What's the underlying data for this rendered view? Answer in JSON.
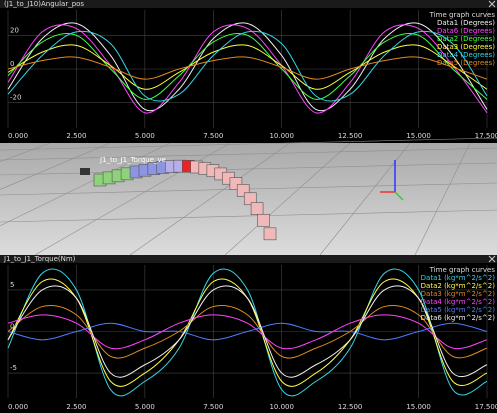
{
  "chart_data": [
    {
      "type": "line",
      "title": "(J1_to_J10)Angular_pos",
      "legend_title": "Time graph curves",
      "x": [
        0,
        1.25,
        2.5,
        3.75,
        5,
        6.25,
        7.5,
        8.75,
        10,
        11.25,
        12.5,
        13.75,
        15,
        16.25,
        17.5
      ],
      "xlim": [
        0,
        17.5
      ],
      "xticks": [
        {
          "value": 0,
          "label": "0.000"
        },
        {
          "value": 2.5,
          "label": "2.500"
        },
        {
          "value": 5,
          "label": "5.000"
        },
        {
          "value": 7.5,
          "label": "7.500"
        },
        {
          "value": 10,
          "label": "10.000"
        },
        {
          "value": 12.5,
          "label": "12.500"
        },
        {
          "value": 15,
          "label": "15.000"
        },
        {
          "value": 17.5,
          "label": "17.500"
        }
      ],
      "ylim": [
        -35,
        35
      ],
      "yticks": [
        -20,
        0,
        20
      ],
      "grid": true,
      "series": [
        {
          "name": "Data1 (Degrees)",
          "color": "#f0f0f0",
          "values": [
            -12,
            18,
            27,
            8,
            -24,
            -12,
            18,
            27,
            8,
            -24,
            -12,
            18,
            27,
            8,
            -24
          ]
        },
        {
          "name": "Data6 (Degrees)",
          "color": "#ff44ff",
          "values": [
            -8,
            22,
            24,
            2,
            -26,
            -8,
            22,
            24,
            2,
            -26,
            -8,
            22,
            24,
            2,
            -26
          ]
        },
        {
          "name": "Data2 (Degrees)",
          "color": "#44ff44",
          "values": [
            -4,
            16,
            20,
            0,
            -18,
            -4,
            16,
            20,
            0,
            -18,
            -4,
            16,
            20,
            0,
            -18
          ]
        },
        {
          "name": "Data3 (Degrees)",
          "color": "#ffff44",
          "values": [
            -2,
            10,
            14,
            2,
            -12,
            -2,
            10,
            14,
            2,
            -12,
            -2,
            10,
            14,
            2,
            -12
          ]
        },
        {
          "name": "Data4 (Degrees)",
          "color": "#33d6e6",
          "values": [
            -15,
            8,
            22,
            15,
            -16,
            -15,
            8,
            22,
            15,
            -16,
            -15,
            8,
            22,
            15,
            -16
          ]
        },
        {
          "name": "Data5 (Degrees)",
          "color": "#e08a20",
          "values": [
            0,
            5,
            7,
            1,
            -6,
            0,
            5,
            7,
            1,
            -6,
            0,
            5,
            7,
            1,
            -6
          ]
        }
      ]
    },
    {
      "type": "line",
      "title": "J1_to_J1_Torque(Nm)",
      "legend_title": "Time graph curves",
      "x": [
        0,
        1.25,
        2.5,
        3.75,
        5,
        6.25,
        7.5,
        8.75,
        10,
        11.25,
        12.5,
        13.75,
        15,
        16.25,
        17.5
      ],
      "xlim": [
        0,
        17.5
      ],
      "xticks": [
        {
          "value": 0,
          "label": "0.000"
        },
        {
          "value": 2.5,
          "label": "2.500"
        },
        {
          "value": 5,
          "label": "5.000"
        },
        {
          "value": 7.5,
          "label": "7.500"
        },
        {
          "value": 10,
          "label": "10.000"
        },
        {
          "value": 12.5,
          "label": "12.500"
        },
        {
          "value": 15,
          "label": "15.000"
        },
        {
          "value": 17.5,
          "label": "17.500"
        }
      ],
      "ylim": [
        -8,
        8
      ],
      "yticks": [
        -5,
        0,
        5
      ],
      "grid": true,
      "series": [
        {
          "name": "Data1 (kg*m^2/s^2)",
          "color": "#33d6e6",
          "values": [
            -2,
            7,
            5,
            -7,
            -6,
            -2,
            7,
            5,
            -7,
            -6,
            -2,
            7,
            5,
            -7,
            -6
          ]
        },
        {
          "name": "Data2 (kg*m^2/s^2)",
          "color": "#ffff44",
          "values": [
            -1,
            6,
            4,
            -6,
            -5,
            -1,
            6,
            4,
            -6,
            -5,
            -1,
            6,
            4,
            -6,
            -5
          ]
        },
        {
          "name": "Data3 (kg*m^2/s^2)",
          "color": "#e08a20",
          "values": [
            0,
            3,
            2,
            -3,
            -2,
            0,
            3,
            2,
            -3,
            -2,
            0,
            3,
            2,
            -3,
            -2
          ]
        },
        {
          "name": "Data4 (kg*m^2/s^2)",
          "color": "#ff44ff",
          "values": [
            1,
            2,
            1,
            -2,
            -1,
            1,
            2,
            1,
            -2,
            -1,
            1,
            2,
            1,
            -2,
            -1
          ]
        },
        {
          "name": "Data5 (kg*m^2/s^2)",
          "color": "#4a7dff",
          "values": [
            0,
            -1,
            0,
            1,
            0,
            0,
            -1,
            0,
            1,
            0,
            0,
            -1,
            0,
            1,
            0
          ]
        },
        {
          "name": "Data6 (kg*m^2/s^2)",
          "color": "#f0f0f0",
          "values": [
            -1,
            5,
            4,
            -5,
            -4,
            -1,
            5,
            4,
            -5,
            -4,
            -1,
            5,
            4,
            -5,
            -4
          ]
        }
      ]
    }
  ],
  "viewport": {
    "label": "J1_to_J1_Torque_ve"
  }
}
